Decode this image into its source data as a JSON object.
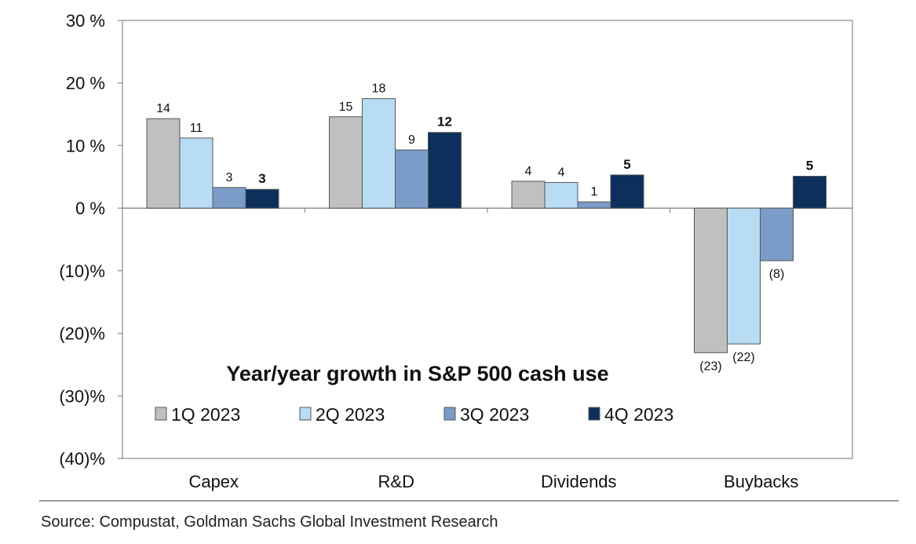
{
  "chart_data": {
    "type": "bar",
    "title": "Year/year growth in S&P 500 cash use",
    "categories": [
      "Capex",
      "R&D",
      "Dividends",
      "Buybacks"
    ],
    "series": [
      {
        "name": "1Q 2023",
        "color": "#c0c0c0",
        "values": [
          14.3,
          14.6,
          4.3,
          -23.1
        ],
        "labels": [
          "14",
          "15",
          "4",
          "(23)"
        ]
      },
      {
        "name": "2Q 2023",
        "color": "#b8dcf4",
        "values": [
          11.2,
          17.5,
          4.1,
          -21.7
        ],
        "labels": [
          "11",
          "18",
          "4",
          "(22)"
        ]
      },
      {
        "name": "3Q 2023",
        "color": "#7a9cc8",
        "values": [
          3.3,
          9.3,
          1.0,
          -8.4
        ],
        "labels": [
          "3",
          "9",
          "1",
          "(8)"
        ]
      },
      {
        "name": "4Q 2023",
        "color": "#0c2f5c",
        "values": [
          3.0,
          12.1,
          5.3,
          5.1
        ],
        "labels": [
          "3",
          "12",
          "5",
          "5"
        ],
        "bold_labels": true
      }
    ],
    "ylim": [
      -40,
      30
    ],
    "yticks": [
      30,
      20,
      10,
      0,
      -10,
      -20,
      -30,
      -40
    ],
    "ytick_labels": [
      "30 %",
      "20 %",
      "10 %",
      "0 %",
      "(10)%",
      "(20)%",
      "(30)%",
      "(40)%"
    ],
    "xlabel": "",
    "ylabel": "",
    "grid": false,
    "legend_position": "bottom-left inside plot"
  },
  "source": "Source: Compustat, Goldman Sachs Global Investment Research"
}
